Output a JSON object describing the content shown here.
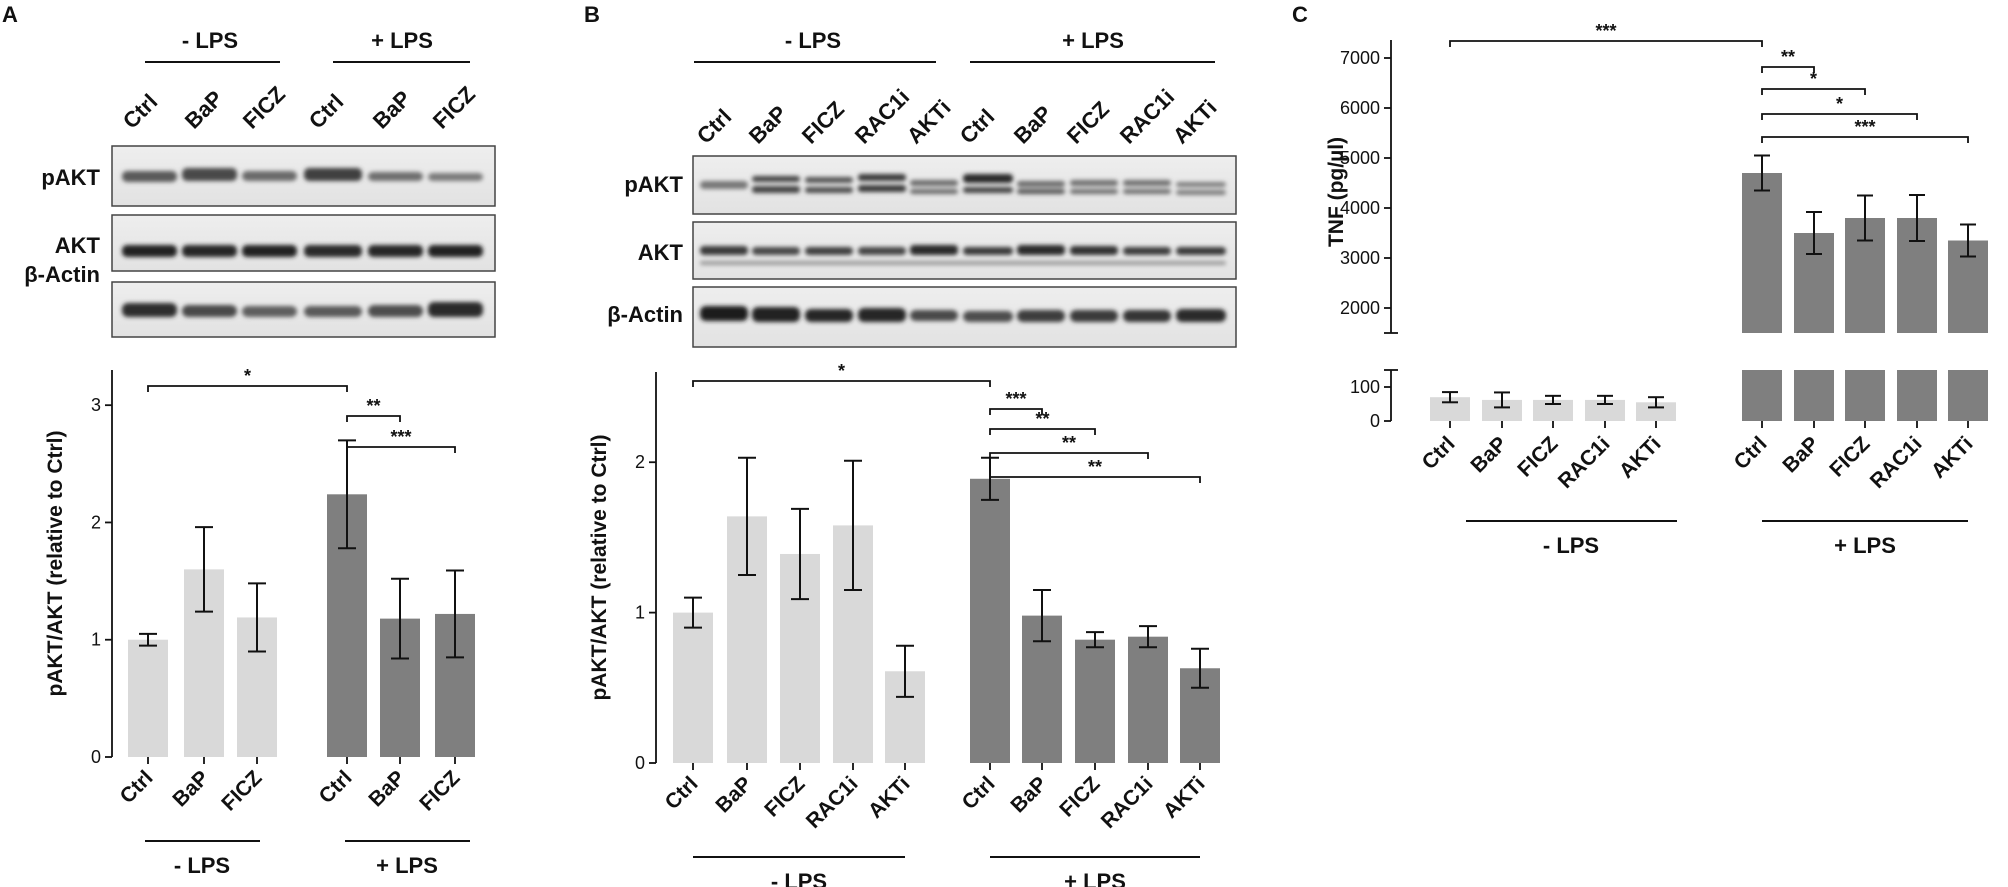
{
  "panels": {
    "A": {
      "letter": "A",
      "group_neg": "- LPS",
      "group_pos": "+ LPS",
      "lane_labels": [
        "Ctrl",
        "BaP",
        "FICZ",
        "Ctrl",
        "BaP",
        "FICZ"
      ],
      "blot_rows": [
        "pAKT",
        "AKT",
        "β-Actin"
      ],
      "ylabel": "pAKT/AKT (relative to Ctrl)",
      "sig": [
        "*",
        "**",
        "***"
      ]
    },
    "B": {
      "letter": "B",
      "group_neg": "- LPS",
      "group_pos": "+ LPS",
      "lane_labels": [
        "Ctrl",
        "BaP",
        "FICZ",
        "RAC1i",
        "AKTi",
        "Ctrl",
        "BaP",
        "FICZ",
        "RAC1i",
        "AKTi"
      ],
      "blot_rows": [
        "pAKT",
        "AKT",
        "β-Actin"
      ],
      "ylabel": "pAKT/AKT (relative to Ctrl)",
      "sig": [
        "*",
        "***",
        "**",
        "**",
        "**"
      ]
    },
    "C": {
      "letter": "C",
      "group_neg": "- LPS",
      "group_pos": "+ LPS",
      "ylabel": "TNF (pg/µl)",
      "sig": [
        "***",
        "**",
        "*",
        "*",
        "***"
      ]
    }
  },
  "colors": {
    "neg": "#d9d9d9",
    "pos": "#7f7f7f",
    "ink": "#111111"
  },
  "chart_data": [
    {
      "panel": "A",
      "type": "bar",
      "ylabel": "pAKT/AKT (relative to Ctrl)",
      "ylim": [
        0,
        3.3
      ],
      "yticks": [
        0,
        1,
        2,
        3
      ],
      "categories": [
        "Ctrl",
        "BaP",
        "FICZ",
        "Ctrl",
        "BaP",
        "FICZ"
      ],
      "groups": [
        "- LPS",
        "- LPS",
        "- LPS",
        "+ LPS",
        "+ LPS",
        "+ LPS"
      ],
      "values": [
        1.0,
        1.6,
        1.19,
        2.24,
        1.18,
        1.22
      ],
      "errors": [
        0.05,
        0.36,
        0.29,
        0.46,
        0.34,
        0.37
      ]
    },
    {
      "panel": "B",
      "type": "bar",
      "ylabel": "pAKT/AKT (relative to Ctrl)",
      "ylim": [
        0,
        2.6
      ],
      "yticks": [
        0,
        1,
        2
      ],
      "categories": [
        "Ctrl",
        "BaP",
        "FICZ",
        "RAC1i",
        "AKTi",
        "Ctrl",
        "BaP",
        "FICZ",
        "RAC1i",
        "AKTi"
      ],
      "groups": [
        "- LPS",
        "- LPS",
        "- LPS",
        "- LPS",
        "- LPS",
        "+ LPS",
        "+ LPS",
        "+ LPS",
        "+ LPS",
        "+ LPS"
      ],
      "values": [
        1.0,
        1.64,
        1.39,
        1.58,
        0.61,
        1.89,
        0.98,
        0.82,
        0.84,
        0.63
      ],
      "errors": [
        0.1,
        0.39,
        0.3,
        0.43,
        0.17,
        0.14,
        0.17,
        0.05,
        0.07,
        0.13
      ]
    },
    {
      "panel": "C",
      "type": "bar",
      "ylabel": "TNF (pg/µl)",
      "broken_axis": true,
      "ylim_lower": [
        0,
        150
      ],
      "ylim_upper": [
        1500,
        7200
      ],
      "yticks_lower": [
        0,
        100
      ],
      "yticks_upper": [
        2000,
        3000,
        4000,
        5000,
        6000,
        7000
      ],
      "categories": [
        "Ctrl",
        "BaP",
        "FICZ",
        "RAC1i",
        "AKTi",
        "Ctrl",
        "BaP",
        "FICZ",
        "RAC1i",
        "AKTi"
      ],
      "groups": [
        "- LPS",
        "- LPS",
        "- LPS",
        "- LPS",
        "- LPS",
        "+ LPS",
        "+ LPS",
        "+ LPS",
        "+ LPS",
        "+ LPS"
      ],
      "values": [
        70,
        62,
        62,
        62,
        55,
        4700,
        3500,
        3800,
        3800,
        3350
      ],
      "errors": [
        15,
        22,
        12,
        12,
        15,
        350,
        420,
        450,
        460,
        320
      ]
    }
  ]
}
